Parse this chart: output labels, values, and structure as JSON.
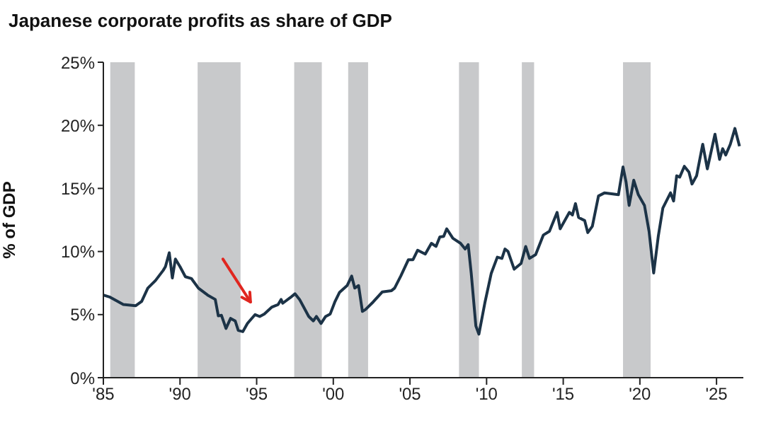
{
  "chart_data": {
    "type": "line",
    "title": "Japanese corporate profits as share of GDP",
    "ylabel": "% of GDP",
    "x": [
      1985,
      1985.4,
      1986.3,
      1987.1,
      1987.5,
      1987.9,
      1988.4,
      1988.9,
      1989.05,
      1989.3,
      1989.5,
      1989.7,
      1990.0,
      1990.35,
      1990.75,
      1991.2,
      1991.8,
      1992.3,
      1992.5,
      1992.7,
      1993.0,
      1993.3,
      1993.6,
      1993.8,
      1994.1,
      1994.4,
      1994.9,
      1995.2,
      1995.5,
      1996.0,
      1996.4,
      1996.6,
      1996.7,
      1997.2,
      1997.5,
      1997.8,
      1998.4,
      1998.7,
      1998.9,
      1999.2,
      1999.5,
      1999.8,
      2000.1,
      2000.4,
      2000.9,
      2001.2,
      2001.4,
      2001.65,
      2001.9,
      2002.1,
      2002.6,
      2003.2,
      2003.8,
      2004.0,
      2004.4,
      2004.9,
      2005.2,
      2005.5,
      2006.0,
      2006.4,
      2006.7,
      2006.95,
      2007.2,
      2007.4,
      2007.8,
      2008.3,
      2008.6,
      2008.8,
      2009.0,
      2009.3,
      2009.5,
      2009.9,
      2010.3,
      2010.7,
      2011.0,
      2011.2,
      2011.4,
      2011.8,
      2012.25,
      2012.55,
      2012.8,
      2013.2,
      2013.7,
      2014.1,
      2014.6,
      2014.8,
      2015.4,
      2015.6,
      2015.8,
      2016.0,
      2016.4,
      2016.6,
      2016.9,
      2017.3,
      2017.7,
      2018.6,
      2018.9,
      2019.1,
      2019.3,
      2019.6,
      2019.9,
      2020.3,
      2020.6,
      2020.9,
      2021.2,
      2021.5,
      2022.0,
      2022.2,
      2022.4,
      2022.6,
      2022.9,
      2023.2,
      2023.4,
      2023.7,
      2024.1,
      2024.4,
      2024.9,
      2025.2,
      2025.4,
      2025.6,
      2025.9,
      2026.2,
      2026.5
    ],
    "series": [
      {
        "color": "#1c3347",
        "values": [
          6.55,
          6.4,
          5.8,
          5.7,
          6.05,
          7.1,
          7.7,
          8.5,
          8.8,
          9.9,
          7.9,
          9.4,
          8.8,
          8.0,
          7.85,
          7.1,
          6.55,
          6.2,
          4.9,
          4.95,
          3.9,
          4.7,
          4.5,
          3.75,
          3.65,
          4.3,
          5.0,
          4.85,
          5.05,
          5.6,
          5.8,
          6.2,
          5.9,
          6.35,
          6.65,
          6.2,
          4.85,
          4.5,
          4.85,
          4.3,
          4.85,
          5.05,
          6.0,
          6.75,
          7.3,
          8.05,
          7.1,
          7.3,
          5.25,
          5.4,
          6.0,
          6.8,
          6.9,
          7.1,
          8.05,
          9.35,
          9.35,
          10.1,
          9.8,
          10.65,
          10.4,
          11.15,
          11.2,
          11.8,
          11.05,
          10.65,
          10.2,
          10.55,
          8.25,
          4.1,
          3.45,
          6.0,
          8.25,
          9.55,
          9.45,
          10.2,
          10.0,
          8.6,
          9.05,
          10.4,
          9.45,
          9.75,
          11.3,
          11.6,
          13.1,
          11.8,
          13.1,
          12.9,
          13.8,
          12.7,
          12.45,
          11.5,
          12.0,
          14.4,
          14.65,
          14.5,
          16.7,
          15.5,
          13.65,
          15.65,
          14.5,
          13.65,
          11.6,
          8.3,
          11.2,
          13.45,
          14.65,
          14.0,
          16.0,
          15.9,
          16.75,
          16.3,
          15.35,
          16.0,
          18.5,
          16.55,
          19.3,
          17.3,
          18.15,
          17.65,
          18.5,
          19.75,
          18.35
        ]
      }
    ],
    "xlim": [
      1985,
      2026.75
    ],
    "xticks": [
      {
        "value": 1985,
        "label": "'85"
      },
      {
        "value": 1990,
        "label": "'90"
      },
      {
        "value": 1995,
        "label": "'95"
      },
      {
        "value": 2000,
        "label": "'00"
      },
      {
        "value": 2005,
        "label": "'05"
      },
      {
        "value": 2010,
        "label": "'10"
      },
      {
        "value": 2015,
        "label": "'15"
      },
      {
        "value": 2020,
        "label": "'20"
      },
      {
        "value": 2025,
        "label": "'25"
      }
    ],
    "ylim": [
      0,
      25
    ],
    "yticks": [
      {
        "value": 0,
        "label": "0%"
      },
      {
        "value": 5,
        "label": "5%"
      },
      {
        "value": 10,
        "label": "10%"
      },
      {
        "value": 15,
        "label": "15%"
      },
      {
        "value": 20,
        "label": "20%"
      },
      {
        "value": 25,
        "label": "25%"
      }
    ],
    "bands": [
      {
        "axis": "x",
        "from": 1985.45,
        "to": 1987.05,
        "color": "#c8c9cb"
      },
      {
        "axis": "x",
        "from": 1991.15,
        "to": 1993.95,
        "color": "#c8c9cb"
      },
      {
        "axis": "x",
        "from": 1997.45,
        "to": 1999.25,
        "color": "#c8c9cb"
      },
      {
        "axis": "x",
        "from": 2000.97,
        "to": 2002.27,
        "color": "#c8c9cb"
      },
      {
        "axis": "x",
        "from": 2008.2,
        "to": 2009.5,
        "color": "#c8c9cb"
      },
      {
        "axis": "x",
        "from": 2012.3,
        "to": 2013.1,
        "color": "#c8c9cb"
      },
      {
        "axis": "x",
        "from": 2018.9,
        "to": 2020.7,
        "color": "#c8c9cb"
      }
    ],
    "grid": false,
    "legend": false,
    "marker": "none",
    "line_style": "solid"
  }
}
